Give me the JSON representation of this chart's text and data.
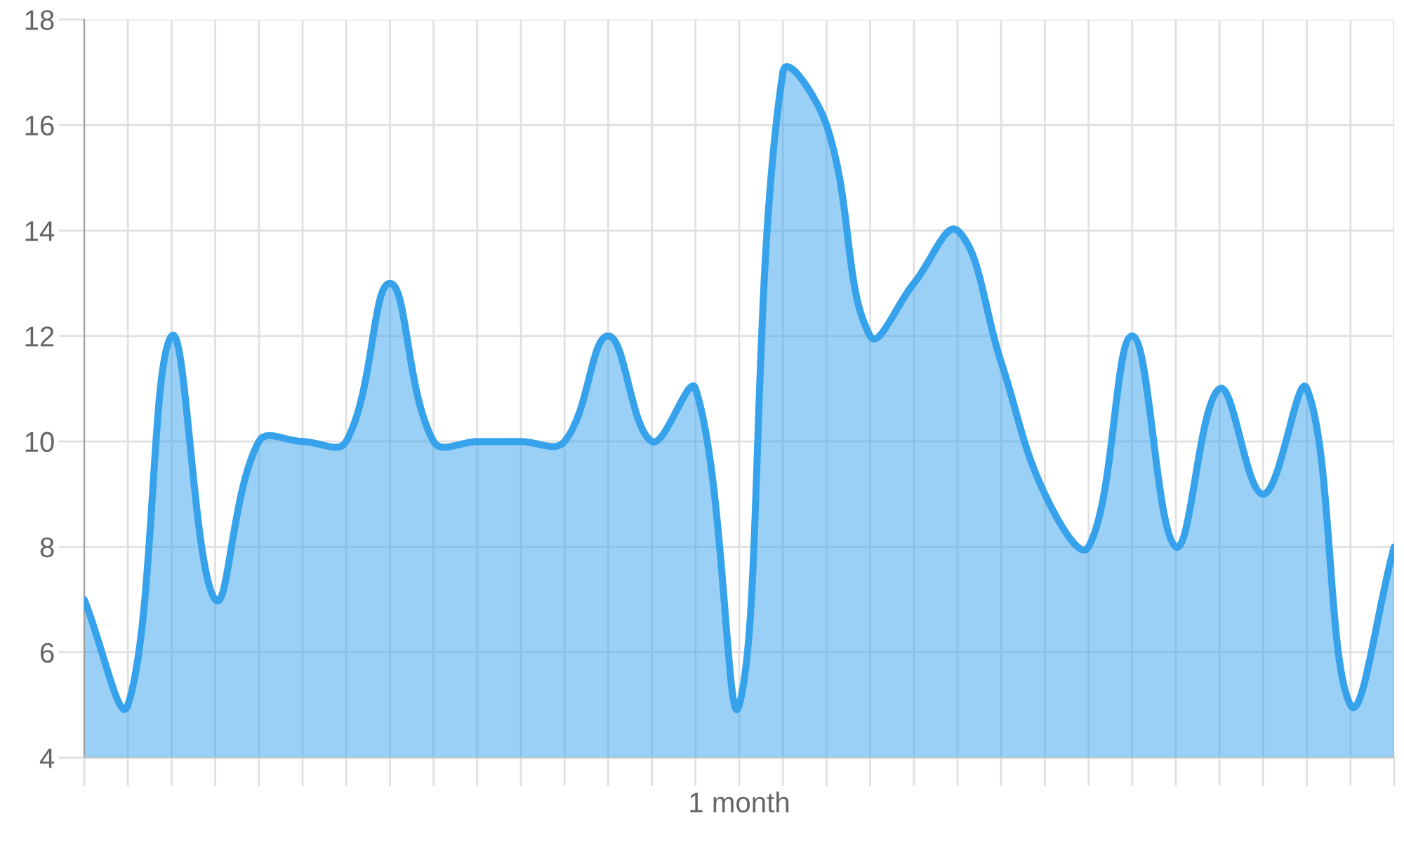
{
  "chart_data": {
    "type": "area",
    "categories": [
      null,
      null,
      null,
      null,
      null,
      null,
      null,
      null,
      null,
      null,
      null,
      null,
      null,
      null,
      null,
      "1 month",
      null,
      null,
      null,
      null,
      null,
      null,
      null,
      null,
      null,
      null,
      null,
      null,
      null,
      null,
      null
    ],
    "series": [
      {
        "color": "#36a2eb",
        "values": [
          7,
          5,
          12,
          7,
          10,
          10,
          10,
          13,
          10,
          10,
          10,
          10,
          12,
          10,
          11,
          5,
          17,
          16,
          12,
          13,
          14,
          11.5,
          9,
          8,
          12,
          8,
          11,
          9,
          11,
          5,
          8
        ]
      }
    ],
    "ylim": [
      4,
      18
    ],
    "yticks": [
      4,
      6,
      8,
      10,
      12,
      14,
      16,
      18
    ],
    "grid": true
  }
}
